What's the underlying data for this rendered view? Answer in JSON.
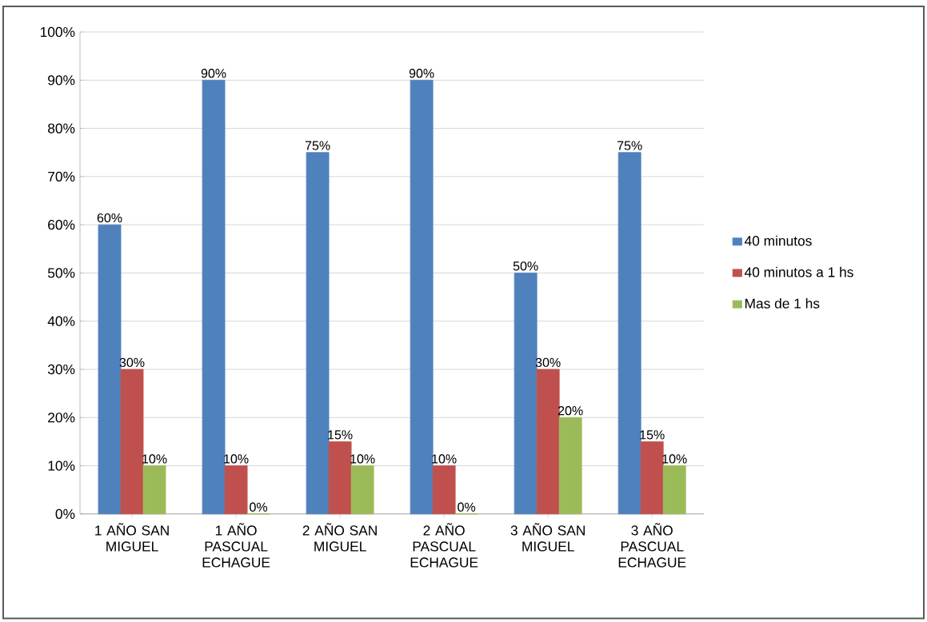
{
  "chart_data": {
    "type": "bar",
    "categories": [
      "1 AÑO SAN MIGUEL",
      "1 AÑO PASCUAL ECHAGUE",
      "2 AÑO SAN MIGUEL",
      "2 AÑO PASCUAL ECHAGUE",
      "3 AÑO SAN MIGUEL",
      "3 AÑO PASCUAL ECHAGUE"
    ],
    "series": [
      {
        "name": "40 minutos",
        "color": "#4f81bd",
        "values": [
          60,
          90,
          75,
          90,
          50,
          75
        ],
        "value_labels": [
          "60%",
          "90%",
          "75%",
          "90%",
          "50%",
          "75%"
        ]
      },
      {
        "name": "40 minutos a 1 hs",
        "color": "#c0504d",
        "values": [
          30,
          10,
          15,
          10,
          30,
          15
        ],
        "value_labels": [
          "30%",
          "10%",
          "15%",
          "10%",
          "30%",
          "15%"
        ]
      },
      {
        "name": "Mas de 1 hs",
        "color": "#9bbb59",
        "values": [
          10,
          0,
          10,
          0,
          20,
          10
        ],
        "value_labels": [
          "10%",
          "0%",
          "10%",
          "0%",
          "20%",
          "10%"
        ]
      }
    ],
    "ylim": [
      0,
      100
    ],
    "yticks": [
      {
        "value": 0,
        "label": "0%"
      },
      {
        "value": 10,
        "label": "10%"
      },
      {
        "value": 20,
        "label": "20%"
      },
      {
        "value": 30,
        "label": "30%"
      },
      {
        "value": 40,
        "label": "40%"
      },
      {
        "value": 50,
        "label": "50%"
      },
      {
        "value": 60,
        "label": "60%"
      },
      {
        "value": 70,
        "label": "70%"
      },
      {
        "value": 80,
        "label": "80%"
      },
      {
        "value": 90,
        "label": "90%"
      },
      {
        "value": 100,
        "label": "100%"
      }
    ],
    "grid": "y",
    "legend": "right"
  }
}
